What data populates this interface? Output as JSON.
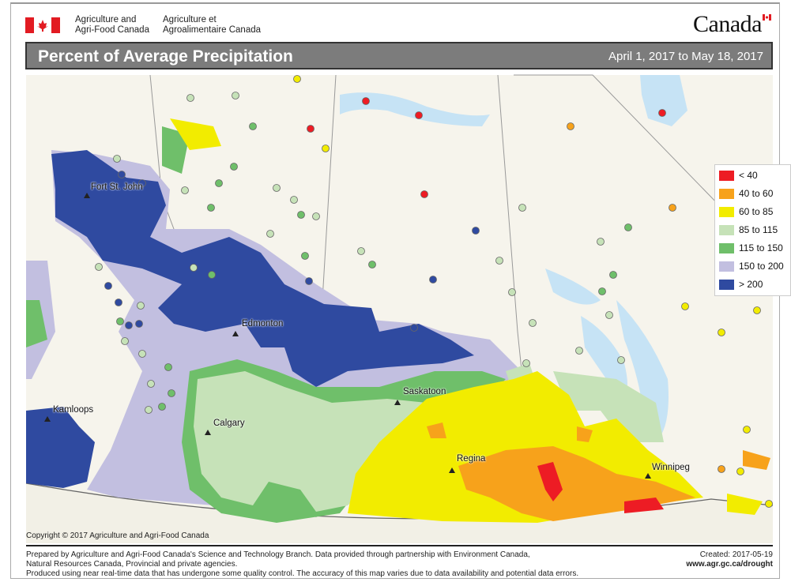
{
  "header": {
    "department_en": [
      "Agriculture and",
      "Agri-Food Canada"
    ],
    "department_fr": [
      "Agriculture et",
      "Agroalimentaire Canada"
    ],
    "wordmark": "Canada",
    "title": "Percent of Average Precipitation",
    "date_range": "April 1, 2017 to May 18, 2017"
  },
  "legend": [
    {
      "label": "< 40",
      "color": "#ed1c24"
    },
    {
      "label": "40 to 60",
      "color": "#f7a21b"
    },
    {
      "label": "60 to 85",
      "color": "#f2ec00"
    },
    {
      "label": "85 to 115",
      "color": "#c6e2b8"
    },
    {
      "label": "115 to 150",
      "color": "#6fbf6a"
    },
    {
      "label": "150 to 200",
      "color": "#c2bfe0"
    },
    {
      "label": "> 200",
      "color": "#2f4aa0"
    }
  ],
  "cities": [
    "Fort St. John",
    "Edmonton",
    "Kamloops",
    "Calgary",
    "Saskatoon",
    "Regina",
    "Winnipeg"
  ],
  "footer": {
    "copyright": "Copyright © 2017 Agriculture and Agri-Food Canada",
    "line1": "Prepared by Agriculture and Agri-Food Canada's Science and Technology Branch. Data provided through partnership with Environment Canada,",
    "line2": "Natural Resources Canada, Provincial and private agencies.",
    "line3": "Produced using near real-time data that has undergone some quality control. The accuracy of this map varies due to data availability and potential data errors.",
    "created": "Created: 2017-05-19",
    "url": "www.agr.gc.ca/drought"
  }
}
